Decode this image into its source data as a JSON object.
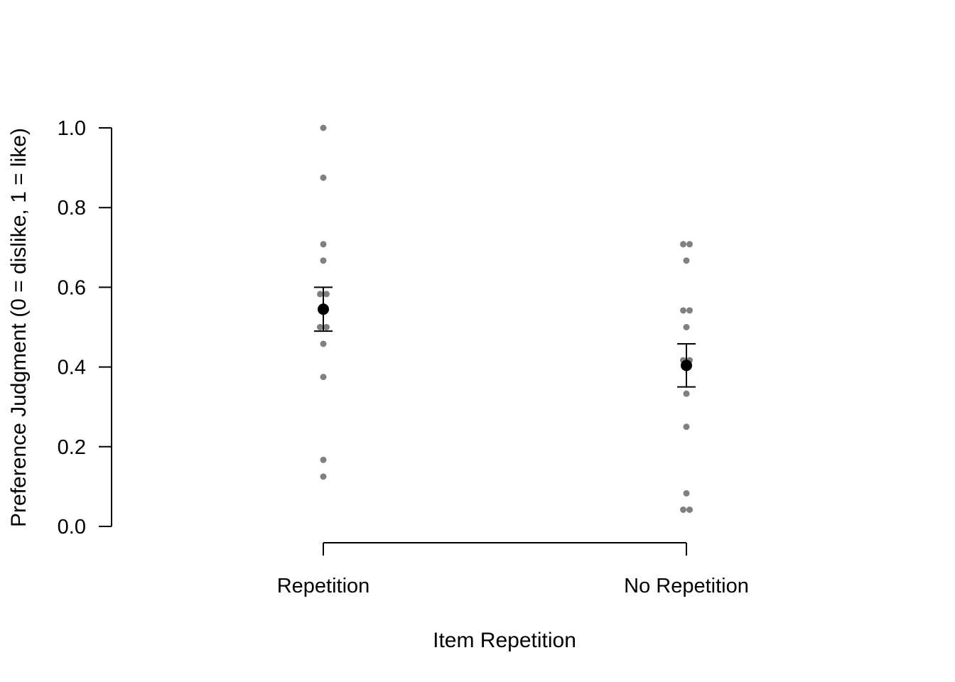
{
  "chart_data": {
    "type": "scatter",
    "title": "",
    "xlabel": "Item Repetition",
    "ylabel": "Preference Judgment (0 = dislike, 1 = like)",
    "categories": [
      "Repetition",
      "No Repetition"
    ],
    "ylim": [
      0,
      1
    ],
    "yticks": [
      "0.0",
      "0.2",
      "0.4",
      "0.6",
      "0.8",
      "1.0"
    ],
    "grid": false,
    "legend": "none",
    "colors": {
      "raw_points": "#808080",
      "summary": "#000000"
    },
    "raw_points": [
      {
        "category": "Repetition",
        "values": [
          1.0,
          0.875,
          0.708,
          0.667,
          0.583,
          0.583,
          0.5,
          0.5,
          0.458,
          0.375,
          0.167,
          0.125
        ]
      },
      {
        "category": "No Repetition",
        "values": [
          0.708,
          0.708,
          0.667,
          0.542,
          0.542,
          0.5,
          0.417,
          0.417,
          0.333,
          0.25,
          0.083,
          0.042,
          0.042
        ]
      }
    ],
    "means": [
      {
        "category": "Repetition",
        "mean": 0.545,
        "lower": 0.49,
        "upper": 0.6
      },
      {
        "category": "No Repetition",
        "mean": 0.404,
        "lower": 0.35,
        "upper": 0.458
      }
    ]
  }
}
